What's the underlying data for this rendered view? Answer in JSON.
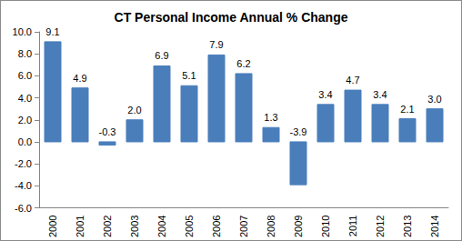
{
  "chart_data": {
    "type": "bar",
    "title": "CT Personal Income Annual % Change",
    "categories": [
      "2000",
      "2001",
      "2002",
      "2003",
      "2004",
      "2005",
      "2006",
      "2007",
      "2008",
      "2009",
      "2010",
      "2011",
      "2012",
      "2013",
      "2014"
    ],
    "values": [
      9.1,
      4.9,
      -0.3,
      2.0,
      6.9,
      5.1,
      7.9,
      6.2,
      1.3,
      -3.9,
      3.4,
      4.7,
      3.4,
      2.1,
      3.0
    ],
    "value_labels": [
      "9.1",
      "4.9",
      "-0.3",
      "2.0",
      "6.9",
      "5.1",
      "7.9",
      "6.2",
      "1.3",
      "-3.9",
      "3.4",
      "4.7",
      "3.4",
      "2.1",
      "3.0"
    ],
    "color": "#4a7ebb",
    "ylim": [
      -6,
      10
    ],
    "yticks": [
      {
        "value": -6,
        "label": "-6.0"
      },
      {
        "value": -4,
        "label": "-4.0"
      },
      {
        "value": -2,
        "label": "-2.0"
      },
      {
        "value": 0,
        "label": "0.0"
      },
      {
        "value": 2,
        "label": "2.0"
      },
      {
        "value": 4,
        "label": "4.0"
      },
      {
        "value": 6,
        "label": "6.0"
      },
      {
        "value": 8,
        "label": "8.0"
      },
      {
        "value": 10,
        "label": "10.0"
      }
    ],
    "grid": false,
    "data_labels": true
  }
}
